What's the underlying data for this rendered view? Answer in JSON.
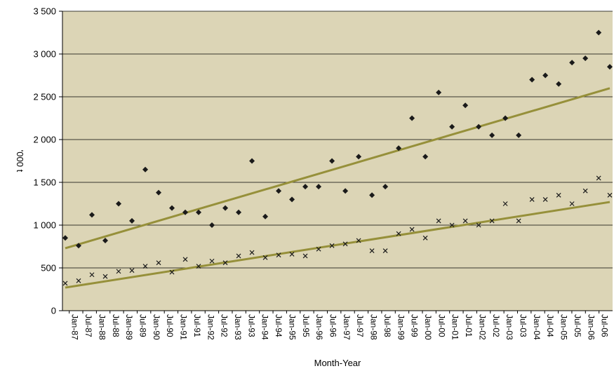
{
  "chart_data": {
    "type": "scatter",
    "title": "",
    "xlabel": "Month-Year",
    "ylabel": "'000 t",
    "x_range": [
      "1987-01",
      "2007-06"
    ],
    "ylim": [
      0,
      3500
    ],
    "y_ticks": [
      0,
      500,
      1000,
      1500,
      2000,
      2500,
      3000,
      3500
    ],
    "y_tick_labels": [
      "0",
      "500",
      "1 000",
      "1 500",
      "2 000",
      "2 500",
      "3 000",
      "3 500"
    ],
    "x_tick_labels": [
      "Jan-87",
      "Jul-87",
      "Jan-88",
      "Jul-88",
      "Jan-89",
      "Jul-89",
      "Jan-90",
      "Jul-90",
      "Jan-91",
      "Jul-91",
      "Jan-92",
      "Jul-92",
      "Jan-93",
      "Jul-93",
      "Jan-94",
      "Jul-94",
      "Jan-95",
      "Jul-95",
      "Jan-96",
      "Jul-96",
      "Jan-97",
      "Jul-97",
      "Jan-98",
      "Jul-98",
      "Jan-99",
      "Jul-99",
      "Jan-00",
      "Jul-00",
      "Jan-01",
      "Jul-01",
      "Jan-02",
      "Jul-02",
      "Jan-03",
      "Jul-03",
      "Jan-04",
      "Jul-04",
      "Jan-05",
      "Jul-05",
      "Jan-06",
      "Jul-06"
    ],
    "grid": "horizontal",
    "legend": "none",
    "colors": {
      "plot_background": "#dcd5b6",
      "trend_line": "#96903a",
      "series_1": "#1a1a1a",
      "series_2": "#1a1a1a"
    },
    "series": [
      {
        "marker": "diamond",
        "values_by_month": [
          {
            "month": "1987-01",
            "value": 850
          },
          {
            "month": "1987-07",
            "value": 760
          },
          {
            "month": "1988-01",
            "value": 1120
          },
          {
            "month": "1988-07",
            "value": 820
          },
          {
            "month": "1989-01",
            "value": 1250
          },
          {
            "month": "1989-07",
            "value": 1050
          },
          {
            "month": "1990-01",
            "value": 1650
          },
          {
            "month": "1990-07",
            "value": 1380
          },
          {
            "month": "1991-01",
            "value": 1200
          },
          {
            "month": "1991-07",
            "value": 1150
          },
          {
            "month": "1992-01",
            "value": 1150
          },
          {
            "month": "1992-07",
            "value": 1000
          },
          {
            "month": "1993-01",
            "value": 1200
          },
          {
            "month": "1993-07",
            "value": 1150
          },
          {
            "month": "1994-01",
            "value": 1750
          },
          {
            "month": "1994-07",
            "value": 1100
          },
          {
            "month": "1995-01",
            "value": 1400
          },
          {
            "month": "1995-07",
            "value": 1300
          },
          {
            "month": "1996-01",
            "value": 1450
          },
          {
            "month": "1996-07",
            "value": 1450
          },
          {
            "month": "1997-01",
            "value": 1750
          },
          {
            "month": "1997-07",
            "value": 1400
          },
          {
            "month": "1998-01",
            "value": 1800
          },
          {
            "month": "1998-07",
            "value": 1350
          },
          {
            "month": "1999-01",
            "value": 1450
          },
          {
            "month": "1999-07",
            "value": 1900
          },
          {
            "month": "2000-01",
            "value": 2250
          },
          {
            "month": "2000-07",
            "value": 1800
          },
          {
            "month": "2001-01",
            "value": 2550
          },
          {
            "month": "2001-07",
            "value": 2150
          },
          {
            "month": "2002-01",
            "value": 2400
          },
          {
            "month": "2002-07",
            "value": 2150
          },
          {
            "month": "2003-01",
            "value": 2050
          },
          {
            "month": "2003-07",
            "value": 2250
          },
          {
            "month": "2004-01",
            "value": 2050
          },
          {
            "month": "2004-07",
            "value": 2700
          },
          {
            "month": "2005-01",
            "value": 2750
          },
          {
            "month": "2005-07",
            "value": 2650
          },
          {
            "month": "2006-01",
            "value": 2900
          },
          {
            "month": "2006-07",
            "value": 2950
          },
          {
            "month": "2007-01",
            "value": 3250
          },
          {
            "month": "2007-06",
            "value": 2850
          }
        ],
        "trend": [
          {
            "month": "1987-01",
            "value": 730
          },
          {
            "month": "2007-06",
            "value": 2600
          }
        ]
      },
      {
        "marker": "x",
        "values_by_month": [
          {
            "month": "1987-01",
            "value": 320
          },
          {
            "month": "1987-07",
            "value": 350
          },
          {
            "month": "1988-01",
            "value": 420
          },
          {
            "month": "1988-07",
            "value": 400
          },
          {
            "month": "1989-01",
            "value": 460
          },
          {
            "month": "1989-07",
            "value": 470
          },
          {
            "month": "1990-01",
            "value": 520
          },
          {
            "month": "1990-07",
            "value": 560
          },
          {
            "month": "1991-01",
            "value": 450
          },
          {
            "month": "1991-07",
            "value": 600
          },
          {
            "month": "1992-01",
            "value": 520
          },
          {
            "month": "1992-07",
            "value": 580
          },
          {
            "month": "1993-01",
            "value": 560
          },
          {
            "month": "1993-07",
            "value": 640
          },
          {
            "month": "1994-01",
            "value": 680
          },
          {
            "month": "1994-07",
            "value": 620
          },
          {
            "month": "1995-01",
            "value": 650
          },
          {
            "month": "1995-07",
            "value": 660
          },
          {
            "month": "1996-01",
            "value": 640
          },
          {
            "month": "1996-07",
            "value": 720
          },
          {
            "month": "1997-01",
            "value": 760
          },
          {
            "month": "1997-07",
            "value": 780
          },
          {
            "month": "1998-01",
            "value": 820
          },
          {
            "month": "1998-07",
            "value": 700
          },
          {
            "month": "1999-01",
            "value": 700
          },
          {
            "month": "1999-07",
            "value": 900
          },
          {
            "month": "2000-01",
            "value": 950
          },
          {
            "month": "2000-07",
            "value": 850
          },
          {
            "month": "2001-01",
            "value": 1050
          },
          {
            "month": "2001-07",
            "value": 1000
          },
          {
            "month": "2002-01",
            "value": 1050
          },
          {
            "month": "2002-07",
            "value": 1000
          },
          {
            "month": "2003-01",
            "value": 1050
          },
          {
            "month": "2003-07",
            "value": 1250
          },
          {
            "month": "2004-01",
            "value": 1050
          },
          {
            "month": "2004-07",
            "value": 1300
          },
          {
            "month": "2005-01",
            "value": 1300
          },
          {
            "month": "2005-07",
            "value": 1350
          },
          {
            "month": "2006-01",
            "value": 1250
          },
          {
            "month": "2006-07",
            "value": 1400
          },
          {
            "month": "2007-01",
            "value": 1550
          },
          {
            "month": "2007-06",
            "value": 1350
          }
        ],
        "trend": [
          {
            "month": "1987-01",
            "value": 270
          },
          {
            "month": "2007-06",
            "value": 1270
          }
        ]
      }
    ]
  }
}
